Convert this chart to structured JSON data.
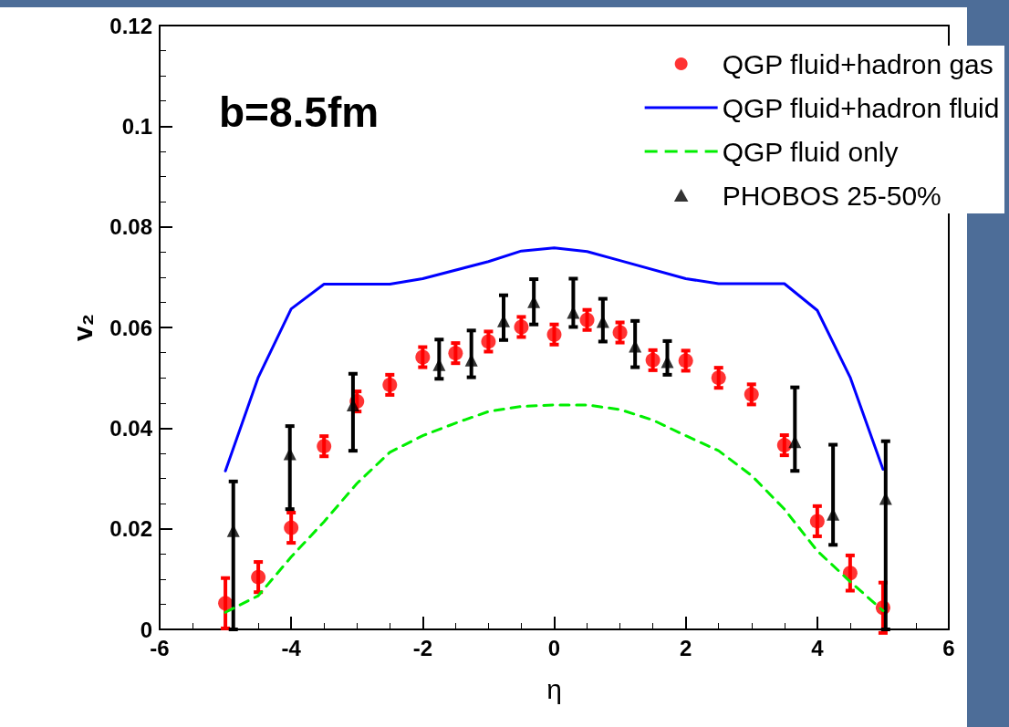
{
  "chart_data": {
    "type": "scatter",
    "xlabel": "η",
    "ylabel": "v₂",
    "annotations": [
      "b=8.5fm"
    ],
    "xlim": [
      -6,
      6
    ],
    "xticks": [
      -6,
      -4,
      -2,
      0,
      2,
      4,
      6
    ],
    "ylim": [
      0,
      0.12
    ],
    "yticks": [
      0,
      0.02,
      0.04,
      0.06,
      0.08,
      0.1,
      0.12
    ],
    "grid": false,
    "legend": "top right",
    "series": [
      {
        "name": "QGP fluid+hadron gas",
        "marker": "circle",
        "color": "#ff0000",
        "x": [
          -5,
          -4.5,
          -4,
          -3.5,
          -3,
          -2.5,
          -2,
          -1.5,
          -1,
          -0.5,
          0,
          0.5,
          1,
          1.5,
          2,
          2.5,
          3,
          3.5,
          4,
          4.5,
          5
        ],
        "values": [
          0.0052,
          0.0104,
          0.0202,
          0.0364,
          0.0453,
          0.0486,
          0.0541,
          0.0549,
          0.0572,
          0.0601,
          0.0586,
          0.0615,
          0.059,
          0.0535,
          0.0534,
          0.05,
          0.0467,
          0.0366,
          0.0215,
          0.0112,
          0.0043
        ],
        "errors": [
          0.005,
          0.003,
          0.003,
          0.002,
          0.002,
          0.002,
          0.002,
          0.002,
          0.002,
          0.002,
          0.002,
          0.002,
          0.002,
          0.002,
          0.002,
          0.002,
          0.002,
          0.002,
          0.003,
          0.0035,
          0.005
        ]
      },
      {
        "name": "QGP fluid+hadron fluid",
        "type": "line",
        "marker": "none",
        "line_style": "solid",
        "color": "#0000ff",
        "x": [
          -5,
          -4.5,
          -4,
          -3.5,
          -2.5,
          -2,
          -1,
          -0.5,
          0,
          0.5,
          1,
          2,
          2.5,
          3.5,
          4,
          4.5,
          5
        ],
        "values": [
          0.0315,
          0.0501,
          0.0637,
          0.0686,
          0.0686,
          0.0697,
          0.0731,
          0.0752,
          0.0758,
          0.0751,
          0.0733,
          0.0697,
          0.0687,
          0.0687,
          0.0634,
          0.0501,
          0.0318
        ]
      },
      {
        "name": "QGP fluid only",
        "type": "line",
        "marker": "none",
        "line_style": "dashed",
        "color": "#00ee00",
        "x": [
          -5,
          -4.5,
          -4,
          -3.5,
          -3,
          -2.5,
          -2,
          -1.5,
          -1,
          -0.5,
          0,
          0.5,
          1,
          1.5,
          2,
          2.5,
          3,
          3.5,
          4,
          4.5,
          5
        ],
        "values": [
          0.0034,
          0.0067,
          0.0144,
          0.0214,
          0.029,
          0.0352,
          0.0385,
          0.041,
          0.0433,
          0.0443,
          0.0446,
          0.0446,
          0.0437,
          0.0416,
          0.0385,
          0.0355,
          0.0306,
          0.0239,
          0.0156,
          0.0095,
          0.0037
        ]
      },
      {
        "name": "PHOBOS 25-50%",
        "marker": "triangle",
        "color": "#000000",
        "x": [
          -4.88,
          -4.02,
          -3.06,
          -1.75,
          -1.26,
          -0.77,
          -0.31,
          0.29,
          0.74,
          1.23,
          1.72,
          3.66,
          4.24,
          5.04
        ],
        "values": [
          0.0196,
          0.0349,
          0.0446,
          0.0526,
          0.0535,
          0.0613,
          0.0651,
          0.063,
          0.0612,
          0.0563,
          0.0532,
          0.0373,
          0.0229,
          0.026
        ],
        "errors": [
          [
            0,
            0.0294
          ],
          [
            0.0239,
            0.0404
          ],
          [
            0.0355,
            0.0508
          ],
          [
            0.0498,
            0.0576
          ],
          [
            0.0501,
            0.0594
          ],
          [
            0.0575,
            0.0664
          ],
          [
            0.0606,
            0.0696
          ],
          [
            0.0601,
            0.0697
          ],
          [
            0.0572,
            0.0657
          ],
          [
            0.0521,
            0.0613
          ],
          [
            0.0506,
            0.0573
          ],
          [
            0.0315,
            0.0481
          ],
          [
            0.0168,
            0.0367
          ],
          [
            0,
            0.0374
          ]
        ]
      }
    ]
  }
}
